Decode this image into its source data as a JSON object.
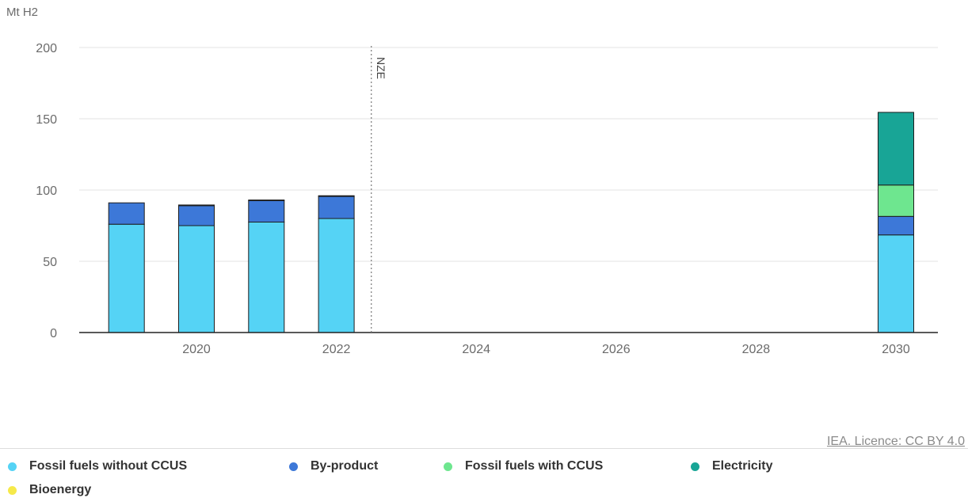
{
  "chart_data": {
    "type": "bar",
    "stacked": true,
    "unit_label": "Mt H2",
    "categories": [
      "2019",
      "2020",
      "2021",
      "2022",
      "2030"
    ],
    "x_ticks": [
      "2020",
      "2022",
      "2024",
      "2026",
      "2028",
      "2030"
    ],
    "y_ticks": [
      "0",
      "50",
      "100",
      "150",
      "200"
    ],
    "ylim": [
      0,
      200
    ],
    "grid": true,
    "marker": {
      "label": "NZE",
      "x": 2022.5
    },
    "series": [
      {
        "name": "Fossil fuels without CCUS",
        "color": "#55d3f5",
        "values": [
          76,
          75,
          77.5,
          80,
          68.5
        ]
      },
      {
        "name": "By-product",
        "color": "#3d78d8",
        "values": [
          15,
          14,
          15,
          15.5,
          13
        ]
      },
      {
        "name": "Fossil fuels with CCUS",
        "color": "#6ee68f",
        "values": [
          0,
          0,
          0,
          0,
          22
        ]
      },
      {
        "name": "Electricity",
        "color": "#18a596",
        "values": [
          0,
          0.5,
          0.5,
          0.5,
          51
        ]
      },
      {
        "name": "Bioenergy",
        "color": "#f6e94a",
        "values": [
          0,
          0,
          0,
          0,
          0
        ]
      }
    ]
  },
  "credit": "IEA. Licence: CC BY 4.0",
  "legend": [
    {
      "label": "Fossil fuels without CCUS",
      "color": "#55d3f5"
    },
    {
      "label": "By-product",
      "color": "#3d78d8"
    },
    {
      "label": "Fossil fuels with CCUS",
      "color": "#6ee68f"
    },
    {
      "label": "Electricity",
      "color": "#18a596"
    },
    {
      "label": "Bioenergy",
      "color": "#f6e94a"
    }
  ]
}
